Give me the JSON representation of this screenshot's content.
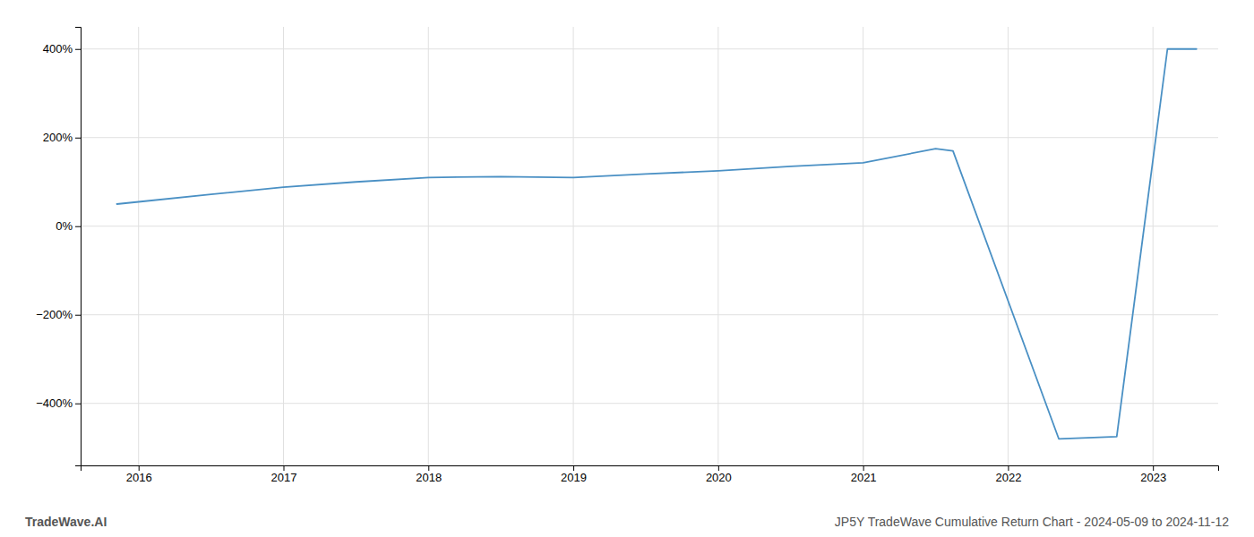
{
  "chart_data": {
    "type": "line",
    "x": [
      2015.85,
      2016.0,
      2016.5,
      2017.0,
      2017.5,
      2018.0,
      2018.5,
      2019.0,
      2019.5,
      2020.0,
      2020.5,
      2021.0,
      2021.5,
      2021.62,
      2022.35,
      2022.75,
      2023.1,
      2023.3
    ],
    "values": [
      50,
      55,
      72,
      88,
      100,
      110,
      112,
      110,
      118,
      125,
      135,
      143,
      175,
      170,
      -480,
      -475,
      400,
      400
    ],
    "color": "#4a90c4",
    "xlim": [
      2015.6,
      2023.45
    ],
    "ylim": [
      -540,
      450
    ],
    "xticks": [
      2016,
      2017,
      2018,
      2019,
      2020,
      2021,
      2022,
      2023
    ],
    "yticks": [
      {
        "value": -400,
        "label": "−400%"
      },
      {
        "value": -200,
        "label": "−200%"
      },
      {
        "value": 0,
        "label": "0%"
      },
      {
        "value": 200,
        "label": "200%"
      },
      {
        "value": 400,
        "label": "400%"
      }
    ],
    "grid": true,
    "annotations": [
      "TradeWave.AI",
      "JP5Y TradeWave Cumulative Return Chart - 2024-05-09 to 2024-11-12"
    ]
  }
}
